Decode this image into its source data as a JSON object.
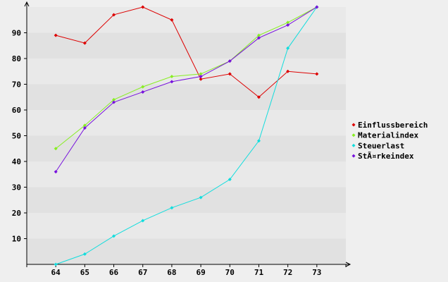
{
  "chart_data": {
    "type": "line",
    "title": "",
    "xlabel": "",
    "ylabel": "",
    "x": [
      64,
      65,
      66,
      67,
      68,
      69,
      70,
      71,
      72,
      73
    ],
    "xlim": [
      63,
      74
    ],
    "ylim": [
      0,
      100
    ],
    "yticks": [
      10,
      20,
      30,
      40,
      50,
      60,
      70,
      80,
      90
    ],
    "grid": "horizontal bands",
    "legend_position": "right",
    "series": [
      {
        "name": "Einflussbereich",
        "color": "#dd0000",
        "values": [
          89,
          86,
          97,
          100,
          95,
          72,
          74,
          65,
          75,
          74
        ]
      },
      {
        "name": "Materialindex",
        "color": "#88ee22",
        "values": [
          45,
          54,
          64,
          69,
          73,
          74,
          79,
          89,
          94,
          100
        ]
      },
      {
        "name": "Steuerlast",
        "color": "#11dddd",
        "values": [
          0,
          4,
          11,
          17,
          22,
          26,
          33,
          48,
          84,
          100
        ]
      },
      {
        "name": "StÃ¤rkeindex",
        "color": "#7711dd",
        "values": [
          36,
          53,
          63,
          67,
          71,
          73,
          79,
          88,
          93,
          100
        ]
      }
    ]
  }
}
